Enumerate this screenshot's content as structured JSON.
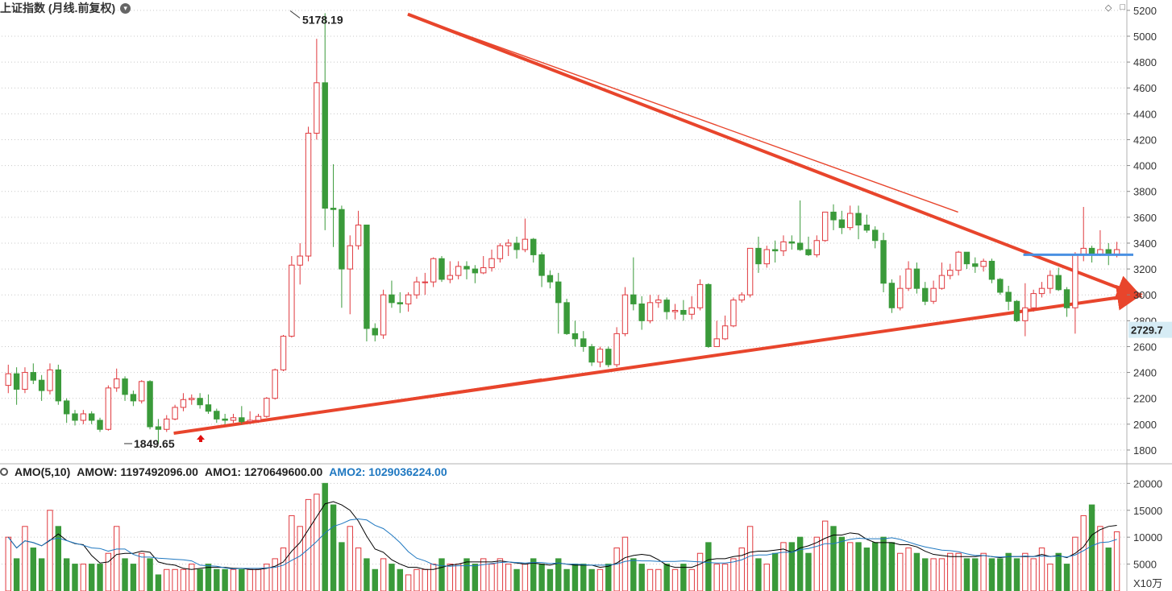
{
  "header": {
    "title": "上证指数 (月线.前复权)",
    "caret_icon": "chevron-down-icon",
    "icons": [
      "diamond-icon",
      "square-icon"
    ]
  },
  "price_panel": {
    "current_price_label": "2729.7",
    "high_label": "5178.19",
    "low_label": "1849.65",
    "y_ticks": [
      "5200",
      "5000",
      "4800",
      "4600",
      "4400",
      "4200",
      "4000",
      "3800",
      "3600",
      "3400",
      "3200",
      "3000",
      "2800",
      "2600",
      "2400",
      "2200",
      "2000",
      "1800"
    ]
  },
  "amo_panel": {
    "label_prefix": "AMO(5,10)",
    "amow": "AMOW: 1197492096.00",
    "amo1": "AMO1: 1270649600.00",
    "amo2": "AMO2: 1029036224.00",
    "y_ticks": [
      "20000",
      "15000",
      "10000",
      "5000"
    ],
    "unit": "X10万"
  },
  "colors": {
    "up": "#e0393e",
    "down": "#3a9a3a",
    "trend": "#e8452c",
    "hline": "#4a90e2",
    "ma1": "#000000",
    "ma2": "#1f78c1",
    "grid": "#c8c8c8"
  },
  "chart_data": {
    "type": "candlestick",
    "ylim": [
      1700,
      5280
    ],
    "volume_ylim": [
      0,
      20500
    ],
    "candles": [
      [
        2300,
        2390,
        2460,
        2240,
        10
      ],
      [
        2390,
        2270,
        2440,
        2150,
        6
      ],
      [
        2270,
        2400,
        2440,
        2240,
        12
      ],
      [
        2400,
        2340,
        2470,
        2310,
        8
      ],
      [
        2340,
        2260,
        2380,
        2180,
        6
      ],
      [
        2260,
        2420,
        2470,
        2230,
        15
      ],
      [
        2420,
        2180,
        2460,
        2150,
        12
      ],
      [
        2180,
        2080,
        2200,
        2010,
        6
      ],
      [
        2080,
        2030,
        2110,
        1990,
        5
      ],
      [
        2030,
        2080,
        2110,
        2000,
        5
      ],
      [
        2080,
        2030,
        2100,
        2000,
        5
      ],
      [
        2030,
        1960,
        2050,
        1940,
        5
      ],
      [
        1960,
        2280,
        2300,
        1950,
        7
      ],
      [
        2280,
        2350,
        2430,
        2250,
        12
      ],
      [
        2350,
        2230,
        2370,
        2180,
        6
      ],
      [
        2230,
        2180,
        2260,
        2140,
        5
      ],
      [
        2180,
        2330,
        2340,
        2160,
        7
      ],
      [
        2330,
        1980,
        2340,
        1960,
        6
      ],
      [
        1980,
        1960,
        2040,
        1849,
        3
      ],
      [
        1960,
        2040,
        2070,
        1940,
        4
      ],
      [
        2040,
        2130,
        2150,
        2030,
        4
      ],
      [
        2130,
        2190,
        2240,
        2100,
        4
      ],
      [
        2190,
        2200,
        2230,
        2150,
        5
      ],
      [
        2200,
        2150,
        2240,
        2120,
        4
      ],
      [
        2150,
        2100,
        2230,
        2080,
        5
      ],
      [
        2100,
        2040,
        2120,
        2010,
        4
      ],
      [
        2040,
        2030,
        2080,
        2000,
        4
      ],
      [
        2030,
        2050,
        2080,
        2010,
        4
      ],
      [
        2050,
        2020,
        2140,
        2000,
        4
      ],
      [
        2020,
        2030,
        2100,
        2000,
        4
      ],
      [
        2030,
        2060,
        2080,
        2010,
        4
      ],
      [
        2060,
        2200,
        2210,
        2050,
        5
      ],
      [
        2200,
        2420,
        2430,
        2190,
        6
      ],
      [
        2420,
        2680,
        2690,
        2410,
        8
      ],
      [
        2680,
        3230,
        3300,
        2670,
        14
      ],
      [
        3230,
        3300,
        3400,
        3080,
        12
      ],
      [
        3300,
        4250,
        4300,
        3260,
        17
      ],
      [
        4250,
        4640,
        4980,
        4200,
        18
      ],
      [
        4640,
        3670,
        5178,
        3500,
        20
      ],
      [
        3670,
        3660,
        4010,
        3370,
        16
      ],
      [
        3660,
        3200,
        3690,
        2900,
        9
      ],
      [
        3200,
        3380,
        3460,
        2850,
        12
      ],
      [
        3380,
        3540,
        3650,
        3350,
        8
      ],
      [
        3540,
        2740,
        3540,
        2640,
        6
      ],
      [
        2740,
        2690,
        2780,
        2640,
        4
      ],
      [
        2690,
        3000,
        3040,
        2660,
        6
      ],
      [
        3000,
        2940,
        3110,
        2900,
        5
      ],
      [
        2940,
        2930,
        3020,
        2860,
        4
      ],
      [
        2930,
        3000,
        3020,
        2870,
        3
      ],
      [
        3000,
        3100,
        3140,
        2970,
        4
      ],
      [
        3100,
        3100,
        3170,
        3000,
        4
      ],
      [
        3100,
        3280,
        3290,
        3060,
        5
      ],
      [
        3280,
        3120,
        3300,
        3100,
        6
      ],
      [
        3120,
        3150,
        3260,
        3090,
        5
      ],
      [
        3150,
        3220,
        3260,
        3120,
        5
      ],
      [
        3220,
        3200,
        3260,
        3120,
        6
      ],
      [
        3200,
        3170,
        3230,
        3090,
        5
      ],
      [
        3170,
        3210,
        3300,
        3160,
        6
      ],
      [
        3210,
        3280,
        3350,
        3180,
        5
      ],
      [
        3280,
        3380,
        3400,
        3250,
        6
      ],
      [
        3380,
        3400,
        3430,
        3300,
        5
      ],
      [
        3400,
        3350,
        3450,
        3280,
        4
      ],
      [
        3350,
        3430,
        3590,
        3330,
        5
      ],
      [
        3430,
        3310,
        3440,
        3250,
        6
      ],
      [
        3310,
        3150,
        3330,
        3060,
        5
      ],
      [
        3150,
        3100,
        3190,
        3050,
        4
      ],
      [
        3100,
        2940,
        3170,
        2700,
        6
      ],
      [
        2940,
        2700,
        2970,
        2690,
        4
      ],
      [
        2700,
        2660,
        2800,
        2600,
        5
      ],
      [
        2660,
        2600,
        2720,
        2560,
        5
      ],
      [
        2600,
        2480,
        2620,
        2450,
        4
      ],
      [
        2480,
        2580,
        2600,
        2440,
        4
      ],
      [
        2580,
        2460,
        2600,
        2440,
        5
      ],
      [
        2460,
        2700,
        2750,
        2440,
        8
      ],
      [
        2700,
        3000,
        3060,
        2680,
        10
      ],
      [
        3000,
        2930,
        3290,
        2880,
        6
      ],
      [
        2930,
        2800,
        2990,
        2730,
        5
      ],
      [
        2800,
        2940,
        3000,
        2780,
        4
      ],
      [
        2940,
        2960,
        3000,
        2900,
        4
      ],
      [
        2960,
        2870,
        2980,
        2810,
        5
      ],
      [
        2870,
        2880,
        2930,
        2810,
        4
      ],
      [
        2880,
        2850,
        2960,
        2800,
        5
      ],
      [
        2850,
        2900,
        2990,
        2810,
        4
      ],
      [
        2900,
        3080,
        3120,
        2880,
        7
      ],
      [
        3080,
        2600,
        3090,
        2590,
        9
      ],
      [
        2600,
        2660,
        2800,
        2620,
        5
      ],
      [
        2660,
        2760,
        2840,
        2650,
        5
      ],
      [
        2760,
        2960,
        2980,
        2750,
        6
      ],
      [
        2960,
        3000,
        3020,
        2940,
        8
      ],
      [
        3000,
        3360,
        3360,
        2980,
        12
      ],
      [
        3360,
        3240,
        3450,
        3170,
        6
      ],
      [
        3240,
        3350,
        3380,
        3210,
        5
      ],
      [
        3350,
        3340,
        3420,
        3250,
        7
      ],
      [
        3340,
        3410,
        3460,
        3300,
        9
      ],
      [
        3410,
        3400,
        3460,
        3350,
        9
      ],
      [
        3400,
        3350,
        3730,
        3340,
        10
      ],
      [
        3350,
        3310,
        3450,
        3300,
        7
      ],
      [
        3310,
        3420,
        3460,
        3290,
        10
      ],
      [
        3420,
        3640,
        3640,
        3410,
        13
      ],
      [
        3640,
        3580,
        3700,
        3500,
        12
      ],
      [
        3580,
        3520,
        3650,
        3470,
        10
      ],
      [
        3520,
        3630,
        3690,
        3500,
        9
      ],
      [
        3630,
        3540,
        3690,
        3430,
        9
      ],
      [
        3540,
        3500,
        3620,
        3480,
        8
      ],
      [
        3500,
        3420,
        3530,
        3360,
        9
      ],
      [
        3420,
        3090,
        3480,
        3020,
        10
      ],
      [
        3090,
        2900,
        3120,
        2860,
        9
      ],
      [
        2900,
        3050,
        3150,
        2880,
        7
      ],
      [
        3050,
        3200,
        3260,
        3030,
        8
      ],
      [
        3200,
        3050,
        3250,
        3010,
        7
      ],
      [
        3050,
        2950,
        3100,
        2920,
        6
      ],
      [
        2950,
        3050,
        3110,
        2930,
        6
      ],
      [
        3050,
        3150,
        3250,
        3040,
        6
      ],
      [
        3150,
        3190,
        3240,
        3120,
        7
      ],
      [
        3190,
        3330,
        3340,
        3150,
        7
      ],
      [
        3330,
        3240,
        3330,
        3200,
        6
      ],
      [
        3240,
        3220,
        3290,
        3170,
        6
      ],
      [
        3220,
        3260,
        3280,
        3180,
        7
      ],
      [
        3260,
        3120,
        3280,
        3090,
        6
      ],
      [
        3120,
        3020,
        3130,
        3000,
        6
      ],
      [
        3020,
        2950,
        3070,
        2880,
        7
      ],
      [
        2950,
        2800,
        2960,
        2790,
        6
      ],
      [
        2800,
        2900,
        3090,
        2680,
        7
      ],
      [
        2900,
        3010,
        3040,
        2870,
        6
      ],
      [
        3010,
        3050,
        3100,
        2980,
        8
      ],
      [
        3050,
        3150,
        3190,
        3010,
        5
      ],
      [
        3150,
        3040,
        3210,
        3030,
        7
      ],
      [
        3040,
        2900,
        3060,
        2830,
        5
      ],
      [
        2900,
        3310,
        3330,
        2700,
        10
      ],
      [
        3310,
        3360,
        3680,
        3260,
        14
      ],
      [
        3360,
        3310,
        3380,
        3250,
        16
      ],
      [
        3310,
        3350,
        3500,
        3300,
        12
      ],
      [
        3350,
        3310,
        3400,
        3230,
        8
      ],
      [
        3310,
        3350,
        3410,
        3290,
        11
      ]
    ],
    "trendlines": [
      {
        "from": [
          0.361,
          5170
        ],
        "to": [
          1.0,
          3000
        ],
        "arrow": true
      },
      {
        "from": [
          0.153,
          1930
        ],
        "to": [
          1.0,
          3000
        ],
        "arrow": true
      }
    ],
    "hline": {
      "value": 3310,
      "from_x": 0.908
    }
  }
}
